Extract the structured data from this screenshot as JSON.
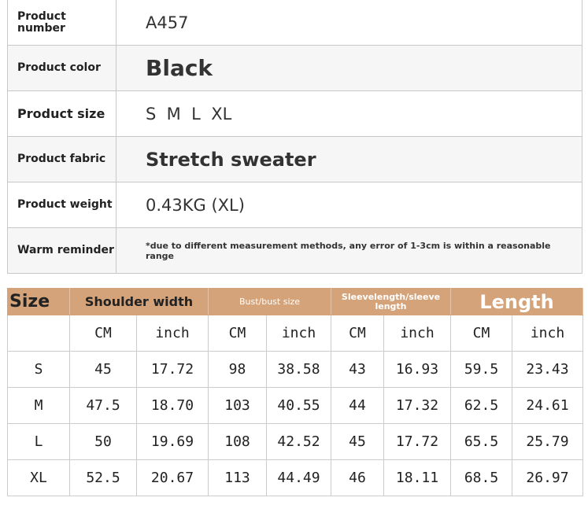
{
  "info": [
    {
      "label": "Product number",
      "value": "A457"
    },
    {
      "label": "Product color",
      "value": "Black"
    },
    {
      "label": "Product size",
      "value": "S  M  L  XL"
    },
    {
      "label": "Product fabric",
      "value": "Stretch sweater"
    },
    {
      "label": "Product weight",
      "value": "0.43KG (XL)"
    },
    {
      "label": "Warm reminder",
      "value": "*due to different measurement methods, any error of 1-3cm is within a reasonable range"
    }
  ],
  "size_table": {
    "header": {
      "size": "Size",
      "shoulder": "Shoulder width",
      "bust": "Bust/bust size",
      "sleeve": "Sleevelength/sleeve length",
      "length": "Length"
    },
    "units": [
      "CM",
      "inch",
      "CM",
      "inch",
      "CM",
      "inch",
      "CM",
      "inch"
    ],
    "rows": [
      [
        "S",
        "45",
        "17.72",
        "98",
        "38.58",
        "43",
        "16.93",
        "59.5",
        "23.43"
      ],
      [
        "M",
        "47.5",
        "18.70",
        "103",
        "40.55",
        "44",
        "17.32",
        "62.5",
        "24.61"
      ],
      [
        "L",
        "50",
        "19.69",
        "108",
        "42.52",
        "45",
        "17.72",
        "65.5",
        "25.79"
      ],
      [
        "XL",
        "52.5",
        "20.67",
        "113",
        "44.49",
        "46",
        "18.11",
        "68.5",
        "26.97"
      ]
    ]
  },
  "colors": {
    "header_bg": "#d5a37a"
  }
}
